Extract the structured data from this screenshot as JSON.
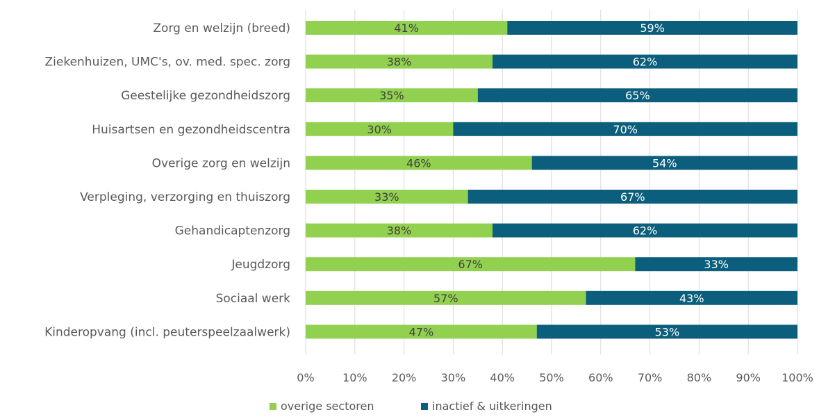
{
  "chart_data": {
    "type": "bar",
    "orientation": "horizontal",
    "stacked": "percent",
    "categories": [
      "Zorg en welzijn (breed)",
      "Ziekenhuizen, UMC's, ov. med. spec. zorg",
      "Geestelijke gezondheidszorg",
      "Huisartsen en gezondheidscentra",
      "Overige zorg en welzijn",
      "Verpleging, verzorging en thuiszorg",
      "Gehandicaptenzorg",
      "Jeugdzorg",
      "Sociaal werk",
      "Kinderopvang (incl. peuterspeelzaalwerk)"
    ],
    "series": [
      {
        "name": "overige sectoren",
        "color": "#92d050",
        "values": [
          41,
          38,
          35,
          30,
          46,
          33,
          38,
          67,
          57,
          47
        ],
        "labels": [
          "41%",
          "38%",
          "35%",
          "30%",
          "46%",
          "33%",
          "38%",
          "67%",
          "57%",
          "47%"
        ],
        "label_color": "#404040"
      },
      {
        "name": "inactief & uitkeringen",
        "color": "#0b5e7c",
        "values": [
          59,
          62,
          65,
          70,
          54,
          67,
          62,
          33,
          43,
          53
        ],
        "labels": [
          "59%",
          "62%",
          "65%",
          "70%",
          "54%",
          "67%",
          "62%",
          "33%",
          "43%",
          "53%"
        ],
        "label_color": "#ffffff"
      }
    ],
    "xlim": [
      0,
      100
    ],
    "xticks": [
      "0%",
      "10%",
      "20%",
      "30%",
      "40%",
      "50%",
      "60%",
      "70%",
      "80%",
      "90%",
      "100%"
    ],
    "grid": true,
    "legend": "bottom-center"
  }
}
